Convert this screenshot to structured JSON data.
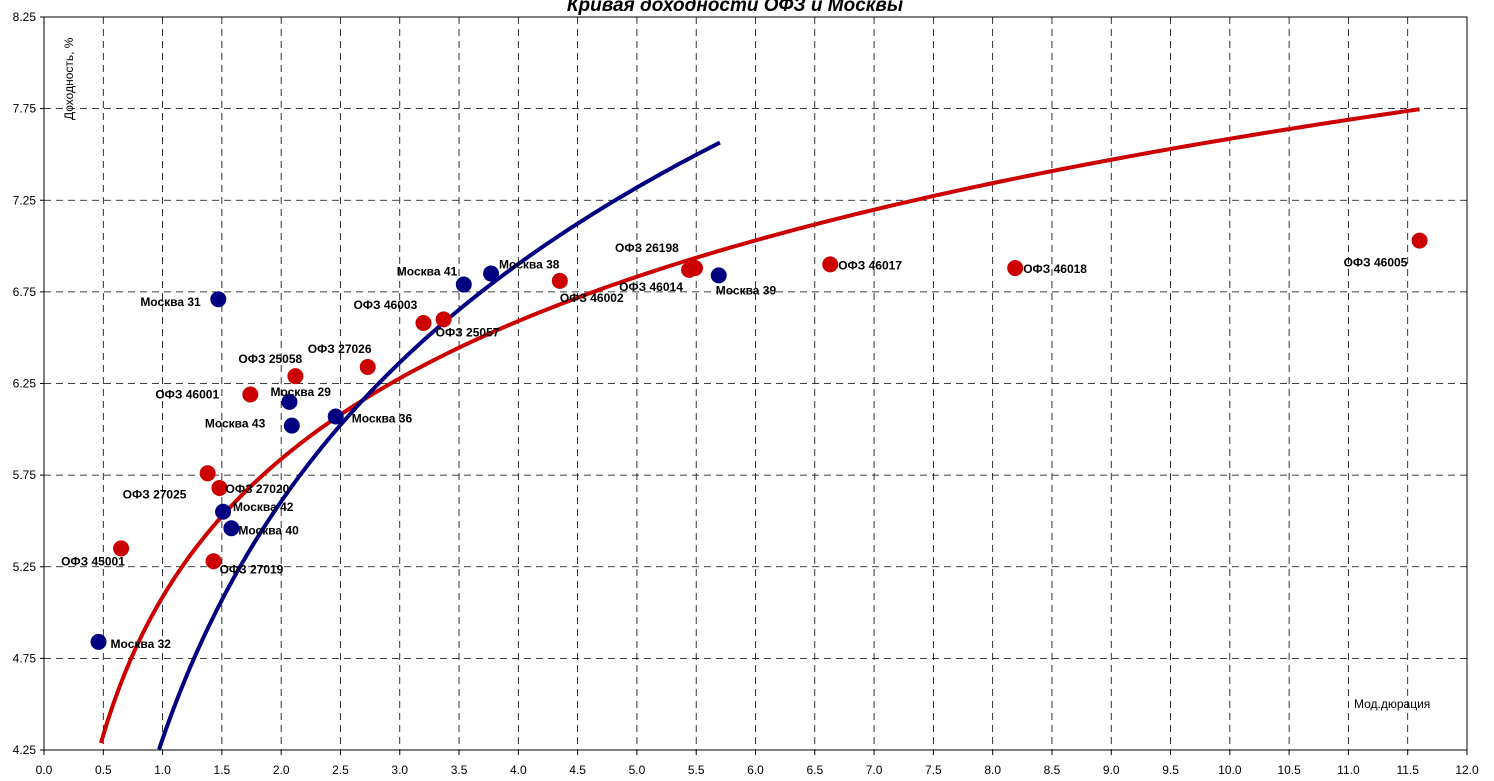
{
  "chart_data": {
    "type": "scatter",
    "title": "Кривая доходности ОФЗ и Москвы",
    "xlabel": "Мод.дюрация",
    "ylabel": "Доходность, %",
    "xlim": [
      0.0,
      12.0
    ],
    "ylim": [
      4.25,
      8.25
    ],
    "x_ticks": [
      "0.0",
      "0.5",
      "1.0",
      "1.5",
      "2.0",
      "2.5",
      "3.0",
      "3.5",
      "4.0",
      "4.5",
      "5.0",
      "5.5",
      "6.0",
      "6.5",
      "7.0",
      "7.5",
      "8.0",
      "8.5",
      "9.0",
      "9.5",
      "10.0",
      "10.5",
      "11.0",
      "11.5",
      "12.0"
    ],
    "y_ticks": [
      "4.25",
      "4.75",
      "5.25",
      "5.75",
      "6.25",
      "6.75",
      "7.25",
      "7.75",
      "8.25"
    ],
    "grid": true,
    "colors": {
      "ofz": "#cc0000",
      "moscow": "#000080"
    },
    "series": [
      {
        "group": "ofz",
        "points": [
          {
            "label": "ОФЗ 45001",
            "x": 0.65,
            "y": 5.35
          },
          {
            "label": "ОФЗ 27019",
            "x": 1.43,
            "y": 5.28
          },
          {
            "label": "ОФЗ 27025",
            "x": 1.38,
            "y": 5.76
          },
          {
            "label": "ОФЗ 27020",
            "x": 1.48,
            "y": 5.68
          },
          {
            "label": "ОФЗ 46001",
            "x": 1.74,
            "y": 6.19
          },
          {
            "label": "ОФЗ 25058",
            "x": 2.12,
            "y": 6.29
          },
          {
            "label": "ОФЗ 27026",
            "x": 2.73,
            "y": 6.34
          },
          {
            "label": "ОФЗ 46003",
            "x": 3.2,
            "y": 6.58
          },
          {
            "label": "ОФЗ 25057",
            "x": 3.37,
            "y": 6.6
          },
          {
            "label": "ОФЗ 46002",
            "x": 4.35,
            "y": 6.81
          },
          {
            "label": "ОФЗ 26198",
            "x": 5.49,
            "y": 6.88
          },
          {
            "label": "ОФЗ 46014",
            "x": 5.44,
            "y": 6.87
          },
          {
            "label": "ОФЗ 46017",
            "x": 6.63,
            "y": 6.9
          },
          {
            "label": "ОФЗ 46018",
            "x": 8.19,
            "y": 6.88
          },
          {
            "label": "ОФЗ 46005",
            "x": 11.6,
            "y": 7.03
          }
        ]
      },
      {
        "group": "moscow",
        "points": [
          {
            "label": "Москва 32",
            "x": 0.46,
            "y": 4.84
          },
          {
            "label": "Москва 40",
            "x": 1.58,
            "y": 5.46
          },
          {
            "label": "Москва 42",
            "x": 1.51,
            "y": 5.55
          },
          {
            "label": "Москва 31",
            "x": 1.47,
            "y": 6.71
          },
          {
            "label": "Москва 43",
            "x": 2.09,
            "y": 6.02
          },
          {
            "label": "Москва 29",
            "x": 2.07,
            "y": 6.15
          },
          {
            "label": "Москва 36",
            "x": 2.46,
            "y": 6.07
          },
          {
            "label": "Москва 41",
            "x": 3.54,
            "y": 6.79
          },
          {
            "label": "Москва 38",
            "x": 3.77,
            "y": 6.85
          },
          {
            "label": "Москва 39",
            "x": 5.69,
            "y": 6.84
          }
        ]
      }
    ],
    "curves": [
      {
        "group": "ofz",
        "x_start": 0.48,
        "x_end": 11.6,
        "y_at_1": 5.085,
        "slope": 1.086
      },
      {
        "group": "moscow",
        "x_start": 0.97,
        "x_end": 5.7,
        "y_at_1": 4.31,
        "slope": 1.87
      }
    ]
  }
}
